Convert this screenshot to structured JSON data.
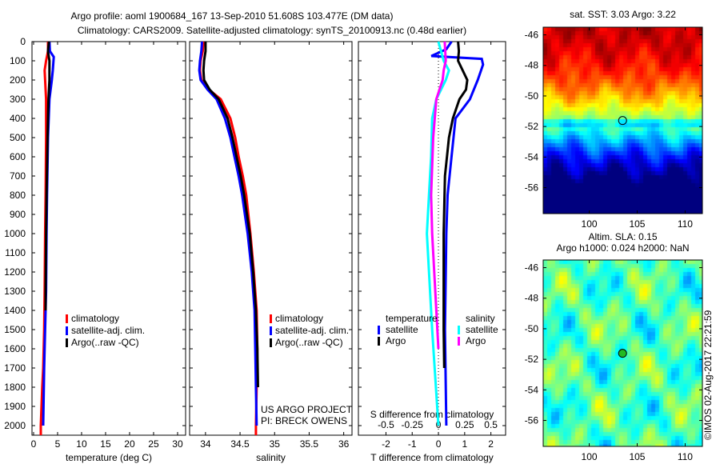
{
  "titles": {
    "line1": "Argo profile: aoml 1900684_167 13-Sep-2010 51.608S 103.477E (DM data)",
    "line2": "Climatology: CARS2009. Satellite-adjusted climatology: synTS_20100913.nc (0.48d earlier)"
  },
  "credit": {
    "project": "US ARGO PROJECT",
    "pi": "PI: BRECK OWENS",
    "stamp": "©IMOS 02-Aug-2017 22:21:59"
  },
  "colors": {
    "climatology": "#ff0000",
    "satellite": "#0000ff",
    "argo": "#000000",
    "sal_satellite": "#00ffff",
    "sal_argo": "#ff00ff"
  },
  "chart_data": [
    {
      "type": "line",
      "title": "",
      "xlabel": "temperature (deg C)",
      "ylabel": "",
      "xlim": [
        -0.33,
        31.67
      ],
      "ylim": [
        2050,
        0
      ],
      "xticks": [
        "0",
        "5",
        "10",
        "15",
        "20",
        "25",
        "30"
      ],
      "xtick_values": [
        0,
        5,
        10,
        15,
        20,
        25,
        30
      ],
      "yticks": [
        "0",
        "100",
        "200",
        "300",
        "400",
        "500",
        "600",
        "700",
        "800",
        "900",
        "1000",
        "1100",
        "1200",
        "1300",
        "1400",
        "1500",
        "1600",
        "1700",
        "1800",
        "1900",
        "2000"
      ],
      "legend": [
        "climatology",
        "satellite-adj. clim.",
        "Argo(..raw -QC)"
      ],
      "series": [
        {
          "name": "climatology",
          "color": "#ff0000",
          "depth": [
            0,
            50,
            100,
            150,
            200,
            300,
            500,
            800,
            1000,
            1300,
            1500,
            1700,
            1800,
            2000,
            2050
          ],
          "values": [
            3.0,
            3.0,
            2.6,
            2.3,
            2.4,
            2.6,
            2.6,
            2.5,
            2.4,
            2.3,
            2.2,
            2.0,
            1.8,
            1.5,
            1.5
          ]
        },
        {
          "name": "satellite-adj. clim.",
          "color": "#0000ff",
          "depth": [
            0,
            50,
            80,
            150,
            200,
            300,
            500,
            800,
            1000,
            1300,
            1500,
            1700,
            2000
          ],
          "values": [
            3.3,
            3.4,
            4.2,
            4.0,
            3.8,
            3.3,
            3.0,
            2.8,
            2.7,
            2.6,
            2.4,
            2.2,
            2.0
          ]
        },
        {
          "name": "Argo(..raw -QC)",
          "color": "#000000",
          "depth": [
            0,
            50,
            100,
            200,
            300,
            500,
            800,
            1000,
            1300,
            1400
          ],
          "values": [
            3.2,
            3.0,
            3.3,
            3.3,
            3.1,
            2.9,
            2.7,
            2.6,
            2.5,
            2.5
          ]
        }
      ]
    },
    {
      "type": "line",
      "xlabel": "salinity",
      "xlim": [
        33.77,
        36.12
      ],
      "ylim": [
        2050,
        0
      ],
      "xticks": [
        "34",
        "34.5",
        "35",
        "35.5",
        "36"
      ],
      "xtick_values": [
        34,
        34.5,
        35,
        35.5,
        36
      ],
      "legend": [
        "climatology",
        "satellite-adj. clim.",
        "Argo(..raw -QC)"
      ],
      "series": [
        {
          "name": "climatology",
          "color": "#ff0000",
          "depth": [
            0,
            50,
            100,
            150,
            200,
            250,
            300,
            400,
            500,
            600,
            700,
            800,
            900,
            1000,
            1200,
            1400,
            1600,
            1800,
            2000,
            2050
          ],
          "values": [
            33.97,
            33.96,
            33.93,
            33.92,
            33.94,
            34.05,
            34.22,
            34.36,
            34.43,
            34.48,
            34.54,
            34.59,
            34.62,
            34.65,
            34.7,
            34.74,
            34.75,
            34.74,
            34.73,
            34.73
          ]
        },
        {
          "name": "satellite-adj. clim.",
          "color": "#0000ff",
          "depth": [
            0,
            50,
            100,
            150,
            200,
            250,
            300,
            400,
            500,
            600,
            700,
            800,
            900,
            1000,
            1200,
            1400,
            1600,
            1800,
            2000
          ],
          "values": [
            33.95,
            33.94,
            33.92,
            33.91,
            33.93,
            34.03,
            34.16,
            34.28,
            34.36,
            34.42,
            34.48,
            34.53,
            34.57,
            34.61,
            34.67,
            34.71,
            34.72,
            34.73,
            34.74
          ]
        },
        {
          "name": "Argo(..raw -QC)",
          "color": "#000000",
          "depth": [
            0,
            50,
            100,
            150,
            200,
            250,
            300,
            400,
            500,
            600,
            700,
            800,
            900,
            1000,
            1200,
            1400,
            1600,
            1800
          ],
          "values": [
            34.0,
            34.0,
            33.98,
            33.97,
            33.98,
            34.06,
            34.19,
            34.32,
            34.39,
            34.45,
            34.51,
            34.56,
            34.6,
            34.64,
            34.69,
            34.73,
            34.75,
            34.76
          ]
        }
      ]
    },
    {
      "type": "line",
      "xlabel": "T difference from climatology",
      "xlabel2": "S difference from climatology",
      "xlim": [
        -3.05,
        2.56
      ],
      "ylim": [
        2050,
        0
      ],
      "xticks": [
        "-2",
        "-1",
        "0",
        "1",
        "2"
      ],
      "xtick_values": [
        -2,
        -1,
        0,
        1,
        2
      ],
      "s_xticks": [
        "-0.5",
        "-0.25",
        "0",
        "0.25",
        "0.5"
      ],
      "s_xtick_values": [
        -0.5,
        -0.25,
        0,
        0.25,
        0.5
      ],
      "legend_groups": [
        {
          "title": "temperature",
          "items": [
            "satellite",
            "Argo"
          ]
        },
        {
          "title": "salinity",
          "items": [
            "satellite",
            "Argo"
          ]
        }
      ],
      "series": [
        {
          "name": "temperature satellite",
          "axis": "T",
          "color": "#0000ff",
          "depth": [
            0,
            40,
            75,
            90,
            120,
            200,
            300,
            400,
            600,
            800,
            1000,
            1500,
            2000
          ],
          "values": [
            0.5,
            0.3,
            -0.27,
            1.65,
            1.7,
            1.5,
            1.2,
            0.65,
            0.5,
            0.35,
            0.3,
            0.25,
            0.3
          ]
        },
        {
          "name": "temperature Argo",
          "axis": "T",
          "color": "#000000",
          "depth": [
            0,
            50,
            100,
            200,
            250,
            300,
            400,
            500,
            700,
            1000,
            1500,
            1700
          ],
          "values": [
            0.75,
            0.78,
            0.75,
            1.1,
            1.05,
            0.8,
            0.55,
            0.4,
            0.25,
            0.2,
            0.2,
            0.22
          ]
        },
        {
          "name": "salinity satellite",
          "axis": "S",
          "color": "#00ffff",
          "depth": [
            0,
            100,
            150,
            200,
            300,
            400,
            600,
            800,
            1000,
            1500,
            2000
          ],
          "values": [
            0.0,
            0.05,
            0.1,
            0.07,
            -0.02,
            -0.06,
            -0.07,
            -0.09,
            -0.11,
            -0.06,
            0.0
          ]
        },
        {
          "name": "salinity Argo",
          "axis": "S",
          "color": "#ff00ff",
          "depth": [
            0,
            100,
            150,
            200,
            300,
            500,
            800,
            1000,
            1400,
            1600
          ],
          "values": [
            0.06,
            0.07,
            0.05,
            0.04,
            -0.02,
            -0.05,
            -0.07,
            -0.06,
            -0.02,
            0.0
          ]
        }
      ]
    },
    {
      "type": "heatmap",
      "title": "sat. SST: 3.03 Argo: 3.22",
      "xlim": [
        95.2,
        111.8
      ],
      "ylim": [
        -57.7,
        -45.5
      ],
      "xticks": [
        "100",
        "105",
        "110"
      ],
      "xtick_values": [
        100,
        105,
        110
      ],
      "yticks": [
        "-46",
        "-48",
        "-50",
        "-52",
        "-54",
        "-56"
      ],
      "ytick_values": [
        -46,
        -48,
        -50,
        -52,
        -54,
        -56
      ],
      "marker": {
        "lon": 103.477,
        "lat": -51.608
      }
    },
    {
      "type": "heatmap",
      "title": "Altim. SLA: 0.15",
      "title2": "Argo h1000: 0.024 h2000: NaN",
      "xlim": [
        95.2,
        111.8
      ],
      "ylim": [
        -57.7,
        -45.5
      ],
      "xticks": [
        "100",
        "105",
        "110"
      ],
      "xtick_values": [
        100,
        105,
        110
      ],
      "yticks": [
        "-46",
        "-48",
        "-50",
        "-52",
        "-54",
        "-56"
      ],
      "ytick_values": [
        -46,
        -48,
        -50,
        -52,
        -54,
        -56
      ],
      "marker": {
        "lon": 103.477,
        "lat": -51.608
      }
    }
  ]
}
